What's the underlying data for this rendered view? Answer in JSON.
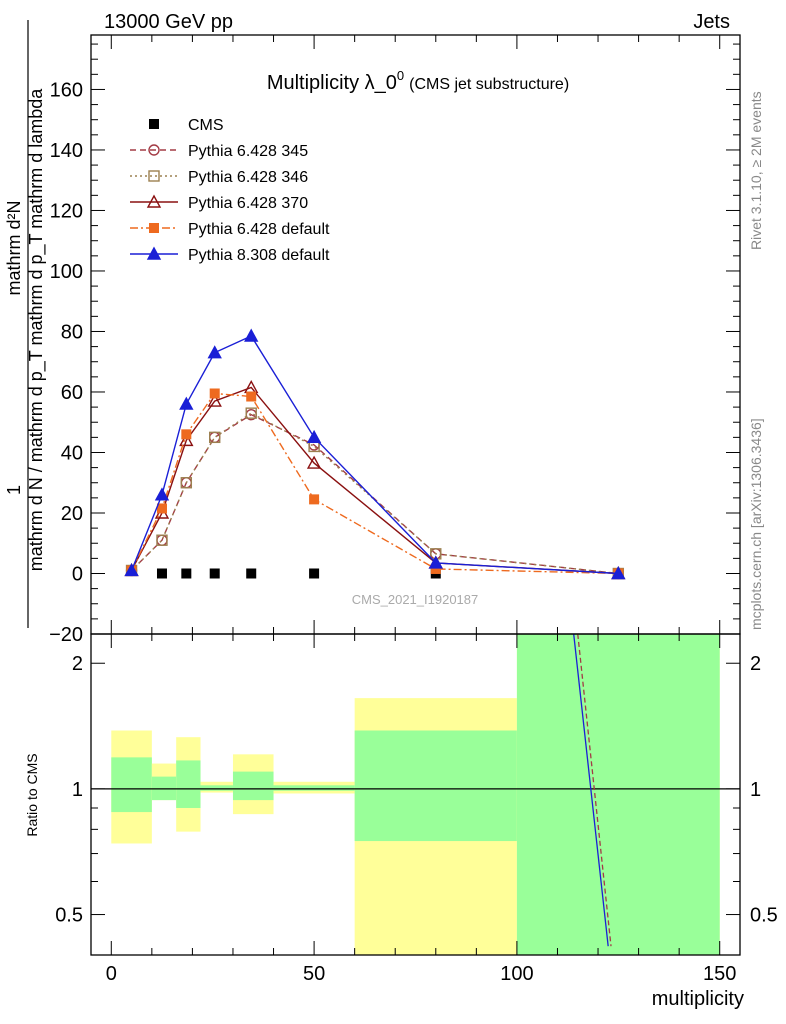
{
  "header": {
    "left": "13000 GeV pp",
    "right": "Jets"
  },
  "side_labels": {
    "rivet": "Rivet 3.1.10, ≥ 2M events",
    "mcplots": "mcplots.cern.ch [arXiv:1306.3436]"
  },
  "chart_data": [
    {
      "type": "line",
      "title": "Multiplicity λ_0",
      "title_superscript": "0",
      "subtitle": "(CMS jet substructure)",
      "watermark": "CMS_2021_I1920187",
      "xlabel": "",
      "ylabel_numerator": "mathrm d²N",
      "ylabel_main": "mathrm d N / mathrm d p_T mathrm d p_T mathrm d lambda",
      "ylabel_fraction_num": "1",
      "xlim": [
        -5,
        155
      ],
      "ylim": [
        -20,
        178
      ],
      "xticks": [
        0,
        50,
        100,
        150
      ],
      "yticks": [
        -20,
        0,
        20,
        40,
        60,
        80,
        100,
        120,
        140,
        160
      ],
      "legend_position": "top-left",
      "series": [
        {
          "name": "CMS",
          "style": "data",
          "color": "#000000",
          "marker": "square-filled",
          "x": [
            12.5,
            18.5,
            25.5,
            34.5,
            50,
            80
          ],
          "y": [
            0,
            0,
            0,
            0,
            0,
            0
          ]
        },
        {
          "name": "Pythia 6.428 345",
          "color": "#a33b45",
          "dash": "6,4",
          "marker": "circle-open",
          "x": [
            5,
            12.5,
            18.5,
            25.5,
            34.5,
            50,
            80,
            125
          ],
          "y": [
            1,
            11,
            30,
            45,
            52.5,
            42.5,
            6.5,
            0
          ]
        },
        {
          "name": "Pythia 6.428 346",
          "color": "#9c8050",
          "dash": "2,3",
          "marker": "square-open",
          "x": [
            5,
            12.5,
            18.5,
            25.5,
            34.5,
            50,
            80,
            125
          ],
          "y": [
            1,
            11,
            30,
            45,
            53,
            42,
            6.5,
            0
          ]
        },
        {
          "name": "Pythia 6.428 370",
          "color": "#8a1010",
          "dash": "",
          "marker": "triangle-open",
          "x": [
            5,
            12.5,
            18.5,
            25.5,
            34.5,
            50,
            80,
            125
          ],
          "y": [
            1,
            20,
            44,
            57,
            61.5,
            36.5,
            3.5,
            0
          ]
        },
        {
          "name": "Pythia 6.428 default",
          "color": "#ee6a1f",
          "dash": "8,3,2,3",
          "marker": "square-filled",
          "x": [
            5,
            12.5,
            18.5,
            25.5,
            34.5,
            50,
            80,
            125
          ],
          "y": [
            1,
            21.5,
            46,
            59.5,
            58.5,
            24.5,
            1.5,
            0
          ]
        },
        {
          "name": "Pythia 8.308 default",
          "color": "#1a1fd6",
          "dash": "",
          "marker": "triangle-filled",
          "x": [
            5,
            12.5,
            18.5,
            25.5,
            34.5,
            50,
            80,
            125
          ],
          "y": [
            1,
            26,
            56,
            73,
            78.5,
            45,
            3.5,
            0
          ]
        }
      ]
    },
    {
      "type": "area",
      "ylabel": "Ratio to CMS",
      "xlabel": "multiplicity",
      "xlim": [
        -5,
        155
      ],
      "ylim": [
        0.4,
        2.35
      ],
      "xticks": [
        0,
        50,
        100,
        150
      ],
      "yticks": [
        0.5,
        1,
        2
      ],
      "reference_line": 1,
      "bands": [
        {
          "x0": 0,
          "x1": 10,
          "inner": [
            0.88,
            1.19
          ],
          "outer": [
            0.74,
            1.38
          ]
        },
        {
          "x0": 10,
          "x1": 16,
          "inner": [
            0.94,
            1.07
          ],
          "outer": [
            0.94,
            1.15
          ]
        },
        {
          "x0": 16,
          "x1": 22,
          "inner": [
            0.9,
            1.17
          ],
          "outer": [
            0.79,
            1.33
          ]
        },
        {
          "x0": 22,
          "x1": 30,
          "inner": [
            0.99,
            1.02
          ],
          "outer": [
            0.98,
            1.04
          ]
        },
        {
          "x0": 30,
          "x1": 40,
          "inner": [
            0.94,
            1.1
          ],
          "outer": [
            0.87,
            1.21
          ]
        },
        {
          "x0": 40,
          "x1": 60,
          "inner": [
            0.99,
            1.02
          ],
          "outer": [
            0.975,
            1.04
          ]
        },
        {
          "x0": 60,
          "x1": 100,
          "inner": [
            0.75,
            1.38
          ],
          "outer": [
            0.3,
            1.65
          ]
        },
        {
          "x0": 100,
          "x1": 150,
          "inner": [
            0.3,
            2.35
          ],
          "outer": [
            0.3,
            2.35
          ]
        }
      ],
      "ratio_lines": [
        {
          "series": "Pythia 6.428 345",
          "color": "#a33b45",
          "x": [
            115,
            123.2
          ],
          "y": [
            2.35,
            0.42
          ]
        },
        {
          "series": "Pythia 8.308 default",
          "color": "#1a1fd6",
          "x": [
            114,
            122.5
          ],
          "y": [
            2.35,
            0.42
          ]
        }
      ]
    }
  ],
  "colors": {
    "inner_band": "#99ff99",
    "outer_band": "#ffff99"
  }
}
